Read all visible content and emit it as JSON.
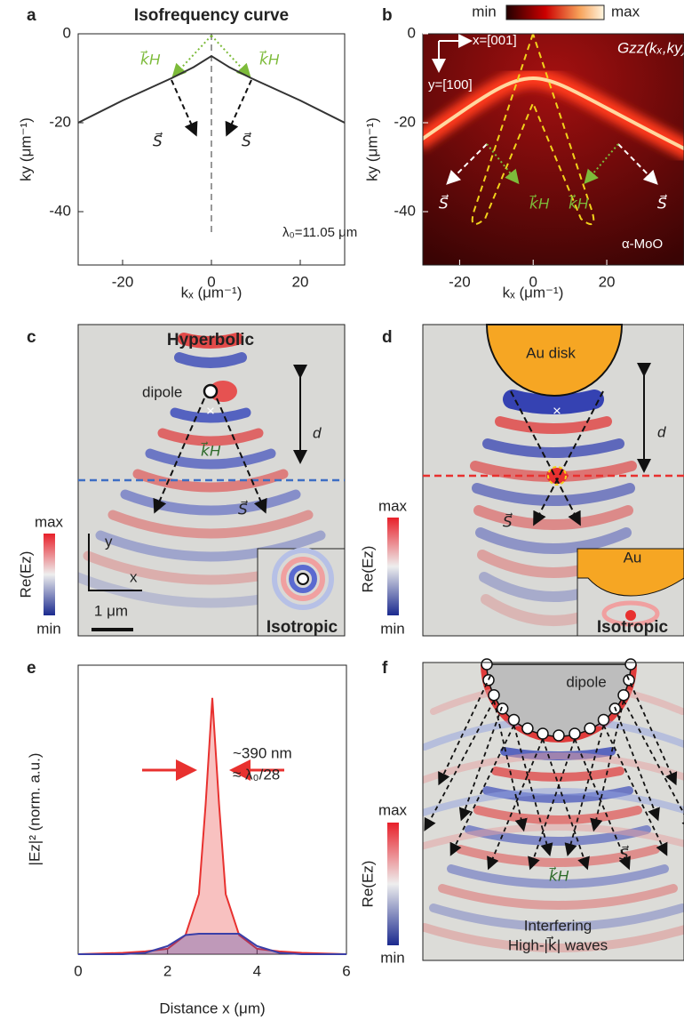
{
  "chart_data": [
    {
      "type": "line",
      "label": "a",
      "title": "Isofrequency curve",
      "xlabel": "kₓ (μm⁻¹)",
      "ylabel": "ky (μm⁻¹)",
      "xlim": [
        -30,
        30
      ],
      "ylim": [
        -52,
        0
      ],
      "xticks": [
        -20,
        0,
        20
      ],
      "yticks": [
        0,
        -20,
        -40
      ],
      "x": [
        -30,
        -20,
        -9,
        -4,
        0,
        4,
        9,
        20,
        30
      ],
      "series": [
        {
          "color": "#333333",
          "values": [
            -20,
            -15,
            -10,
            -7.5,
            -5,
            -7.5,
            -10,
            -15,
            -20
          ]
        }
      ],
      "annotations": [
        "k⃗H",
        "k⃗H",
        "S⃗",
        "S⃗",
        "λ₀=11.05 μm"
      ]
    },
    {
      "type": "heatmap",
      "label": "b",
      "title": "Gzz(kₓ,ky)",
      "xlabel": "kₓ (μm⁻¹)",
      "ylabel": "ky (μm⁻¹)",
      "xlim": [
        -30,
        41
      ],
      "ylim": [
        -52,
        0
      ],
      "xticks": [
        -20,
        0,
        20
      ],
      "yticks": [
        0,
        -20,
        -40
      ],
      "colorbar": [
        "min",
        "max"
      ],
      "annotations": [
        "x=[001]",
        "y=[100]",
        "S⃗",
        "k⃗H",
        "k⃗H",
        "S⃗",
        "α-MoO"
      ]
    },
    {
      "type": "line",
      "label": "e",
      "xlabel": "Distance x (μm)",
      "ylabel": "|Ez|² (norm. a.u.)",
      "xlim": [
        0,
        6
      ],
      "ylim": [
        0,
        1.06
      ],
      "xticks": [
        0,
        2,
        4,
        6
      ],
      "fill": true,
      "x": [
        0,
        1,
        1.5,
        2,
        2.4,
        2.7,
        2.85,
        3,
        3.15,
        3.3,
        3.6,
        4,
        4.5,
        5,
        6
      ],
      "series": [
        {
          "color": "#e8312f",
          "values": [
            0,
            0.005,
            0.01,
            0.02,
            0.07,
            0.22,
            0.55,
            0.94,
            0.55,
            0.22,
            0.07,
            0.02,
            0.01,
            0.005,
            0
          ]
        },
        {
          "color": "#3a3fa8",
          "values": [
            0,
            0,
            0.005,
            0.03,
            0.07,
            0.075,
            0.075,
            0.075,
            0.075,
            0.075,
            0.075,
            0.03,
            0.005,
            0,
            0
          ]
        }
      ],
      "annotations": [
        "~390 nm",
        "≈ λ₀/28"
      ]
    }
  ],
  "panels": [
    {
      "label": "c",
      "texts": [
        "Hyperbolic",
        "dipole",
        "d",
        "k⃗H",
        "S⃗",
        "max",
        "Re(Ez)",
        "min",
        "y",
        "x",
        "1 μm",
        "Isotropic"
      ]
    },
    {
      "label": "d",
      "texts": [
        "Au disk",
        "d",
        "S⃗",
        "max",
        "Re(Ez)",
        "min",
        "Au",
        "Isotropic"
      ]
    },
    {
      "label": "f",
      "texts": [
        "dipole",
        "S⃗",
        "k⃗H",
        "max",
        "Re(Ez)",
        "min",
        "Interfering",
        "High-|k⃗| waves"
      ]
    }
  ]
}
